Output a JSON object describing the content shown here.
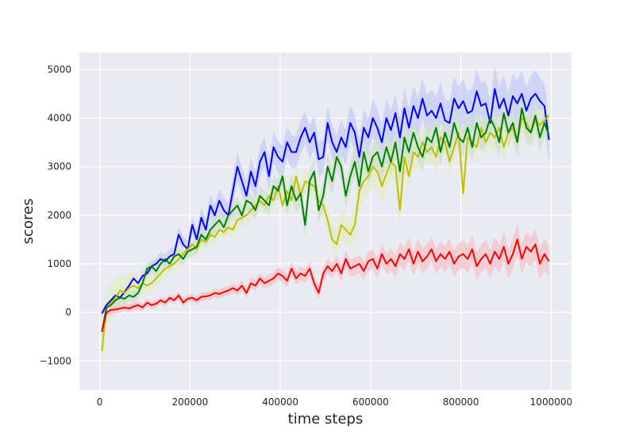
{
  "chart_data": {
    "type": "line",
    "xlabel": "time steps",
    "ylabel": "scores",
    "xlim": [
      -45000,
      1045000
    ],
    "ylim": [
      -1600,
      5350
    ],
    "xticks": [
      0,
      200000,
      400000,
      600000,
      800000,
      1000000
    ],
    "xtick_labels": [
      "0",
      "200000",
      "400000",
      "600000",
      "800000",
      "1000000"
    ],
    "yticks": [
      -1000,
      0,
      1000,
      2000,
      3000,
      4000,
      5000
    ],
    "ytick_labels": [
      "−1000",
      "0",
      "1000",
      "2000",
      "3000",
      "4000",
      "5000"
    ],
    "grid": true,
    "shaded_band": "variance band around each series",
    "series": [
      {
        "color": "#0000ff",
        "band_color": "#c8cdf5",
        "band_width": [
          50,
          100,
          180,
          280,
          330,
          350,
          380,
          420,
          450,
          470,
          480
        ],
        "x": [
          5000,
          15000,
          25000,
          35000,
          45000,
          55000,
          65000,
          75000,
          85000,
          95000,
          105000,
          115000,
          125000,
          135000,
          145000,
          155000,
          165000,
          175000,
          185000,
          195000,
          205000,
          215000,
          225000,
          235000,
          245000,
          255000,
          265000,
          275000,
          285000,
          295000,
          305000,
          315000,
          325000,
          335000,
          345000,
          355000,
          365000,
          375000,
          385000,
          395000,
          405000,
          415000,
          425000,
          435000,
          445000,
          455000,
          465000,
          475000,
          485000,
          495000,
          505000,
          515000,
          525000,
          535000,
          545000,
          555000,
          565000,
          575000,
          585000,
          595000,
          605000,
          615000,
          625000,
          635000,
          645000,
          655000,
          665000,
          675000,
          685000,
          695000,
          705000,
          715000,
          725000,
          735000,
          745000,
          755000,
          765000,
          775000,
          785000,
          795000,
          805000,
          815000,
          825000,
          835000,
          845000,
          855000,
          865000,
          875000,
          885000,
          895000,
          905000,
          915000,
          925000,
          935000,
          945000,
          955000,
          965000,
          975000,
          985000,
          995000
        ],
        "values": [
          -20,
          150,
          250,
          350,
          300,
          420,
          550,
          700,
          600,
          750,
          800,
          950,
          1000,
          1100,
          1050,
          1150,
          1200,
          1600,
          1400,
          1300,
          1800,
          1500,
          1950,
          1700,
          2200,
          2000,
          2300,
          2100,
          2000,
          2500,
          3000,
          2700,
          2400,
          2900,
          2600,
          3100,
          3300,
          2800,
          3400,
          3200,
          3100,
          3500,
          3300,
          3300,
          3600,
          3800,
          3500,
          3700,
          3150,
          3200,
          3900,
          3500,
          3300,
          3600,
          3400,
          3900,
          3700,
          3200,
          3800,
          3600,
          4000,
          3800,
          3500,
          4000,
          3750,
          4100,
          3600,
          4200,
          3800,
          4250,
          4000,
          4400,
          4050,
          4150,
          4000,
          4300,
          3950,
          3900,
          4400,
          4200,
          4350,
          4100,
          4150,
          4550,
          4250,
          4300,
          3900,
          4600,
          4200,
          4400,
          4050,
          4450,
          4300,
          4500,
          4150,
          4400,
          4500,
          4350,
          4250,
          3550
        ]
      },
      {
        "color": "#bfbf00",
        "band_color": "#e4ecc9",
        "band_width": [
          450,
          200,
          150,
          180,
          220,
          250,
          400,
          300,
          300,
          300,
          280
        ],
        "x": [
          5000,
          15000,
          25000,
          35000,
          45000,
          55000,
          65000,
          75000,
          85000,
          95000,
          105000,
          115000,
          125000,
          135000,
          145000,
          155000,
          165000,
          175000,
          185000,
          195000,
          205000,
          215000,
          225000,
          235000,
          245000,
          255000,
          265000,
          275000,
          285000,
          295000,
          305000,
          315000,
          325000,
          335000,
          345000,
          355000,
          365000,
          375000,
          385000,
          395000,
          405000,
          415000,
          425000,
          435000,
          445000,
          455000,
          465000,
          475000,
          485000,
          495000,
          505000,
          515000,
          525000,
          535000,
          545000,
          555000,
          565000,
          575000,
          585000,
          595000,
          605000,
          615000,
          625000,
          635000,
          645000,
          655000,
          665000,
          675000,
          685000,
          695000,
          705000,
          715000,
          725000,
          735000,
          745000,
          755000,
          765000,
          775000,
          785000,
          795000,
          805000,
          815000,
          825000,
          835000,
          845000,
          855000,
          865000,
          875000,
          885000,
          895000,
          905000,
          915000,
          925000,
          935000,
          945000,
          955000,
          965000,
          975000,
          985000,
          995000
        ],
        "values": [
          -800,
          100,
          200,
          300,
          450,
          400,
          500,
          550,
          500,
          600,
          550,
          600,
          700,
          800,
          900,
          950,
          1000,
          1100,
          1200,
          1300,
          1400,
          1300,
          1500,
          1450,
          1600,
          1550,
          1700,
          1650,
          1750,
          1700,
          1900,
          1950,
          2000,
          2100,
          2200,
          2300,
          2200,
          2400,
          2300,
          2600,
          2200,
          2500,
          2300,
          2800,
          2400,
          2700,
          2650,
          2600,
          2300,
          2200,
          1900,
          1500,
          1400,
          1800,
          1700,
          1600,
          1800,
          2500,
          2700,
          2800,
          3000,
          2900,
          2600,
          2850,
          3100,
          3000,
          2100,
          3200,
          2800,
          3300,
          3200,
          3500,
          3300,
          3400,
          3200,
          3600,
          3500,
          3100,
          3400,
          3700,
          2450,
          3600,
          3500,
          3400,
          3800,
          3500,
          3700,
          3600,
          3800,
          3400,
          3700,
          3800,
          3500,
          4000,
          3900,
          3700,
          3950,
          3850,
          3950,
          4050
        ]
      },
      {
        "color": "#008000",
        "band_color": "#cfe1d0",
        "band_width": [
          120,
          120,
          150,
          180,
          220,
          280,
          300,
          300,
          300,
          300,
          280
        ],
        "x": [
          5000,
          15000,
          25000,
          35000,
          45000,
          55000,
          65000,
          75000,
          85000,
          95000,
          105000,
          115000,
          125000,
          135000,
          145000,
          155000,
          165000,
          175000,
          185000,
          195000,
          205000,
          215000,
          225000,
          235000,
          245000,
          255000,
          265000,
          275000,
          285000,
          295000,
          305000,
          315000,
          325000,
          335000,
          345000,
          355000,
          365000,
          375000,
          385000,
          395000,
          405000,
          415000,
          425000,
          435000,
          445000,
          455000,
          465000,
          475000,
          485000,
          495000,
          505000,
          515000,
          525000,
          535000,
          545000,
          555000,
          565000,
          575000,
          585000,
          595000,
          605000,
          615000,
          625000,
          635000,
          645000,
          655000,
          665000,
          675000,
          685000,
          695000,
          705000,
          715000,
          725000,
          735000,
          745000,
          755000,
          765000,
          775000,
          785000,
          795000,
          805000,
          815000,
          825000,
          835000,
          845000,
          855000,
          865000,
          875000,
          885000,
          895000,
          905000,
          915000,
          925000,
          935000,
          945000,
          955000,
          965000,
          975000,
          985000,
          995000
        ],
        "values": [
          -400,
          100,
          150,
          250,
          300,
          280,
          350,
          320,
          400,
          600,
          900,
          950,
          850,
          1000,
          1100,
          1000,
          1150,
          1200,
          1100,
          1250,
          1300,
          1350,
          1600,
          1500,
          1700,
          1800,
          1900,
          1750,
          2000,
          2100,
          2200,
          2000,
          2300,
          2250,
          2100,
          2400,
          2300,
          2200,
          2600,
          2500,
          2800,
          2200,
          2600,
          2300,
          2450,
          1800,
          2700,
          2900,
          2100,
          2400,
          3000,
          2700,
          3200,
          3000,
          2400,
          2800,
          3100,
          2600,
          3300,
          2900,
          3200,
          3300,
          3000,
          3400,
          3100,
          3500,
          2900,
          3600,
          3300,
          3700,
          3400,
          3200,
          3600,
          3500,
          3800,
          3300,
          3700,
          3400,
          3900,
          3600,
          3500,
          3800,
          3400,
          3900,
          3600,
          3700,
          4000,
          3800,
          3500,
          4100,
          3700,
          3900,
          3500,
          4200,
          3800,
          3700,
          4050,
          3600,
          3900,
          3650
        ]
      },
      {
        "color": "#ff0000",
        "band_color": "#f2c6cc",
        "band_width": [
          80,
          80,
          80,
          100,
          130,
          150,
          200,
          250,
          280,
          300,
          320
        ],
        "x": [
          5000,
          15000,
          25000,
          35000,
          45000,
          55000,
          65000,
          75000,
          85000,
          95000,
          105000,
          115000,
          125000,
          135000,
          145000,
          155000,
          165000,
          175000,
          185000,
          195000,
          205000,
          215000,
          225000,
          235000,
          245000,
          255000,
          265000,
          275000,
          285000,
          295000,
          305000,
          315000,
          325000,
          335000,
          345000,
          355000,
          365000,
          375000,
          385000,
          395000,
          405000,
          415000,
          425000,
          435000,
          445000,
          455000,
          465000,
          475000,
          485000,
          495000,
          505000,
          515000,
          525000,
          535000,
          545000,
          555000,
          565000,
          575000,
          585000,
          595000,
          605000,
          615000,
          625000,
          635000,
          645000,
          655000,
          665000,
          675000,
          685000,
          695000,
          705000,
          715000,
          725000,
          735000,
          745000,
          755000,
          765000,
          775000,
          785000,
          795000,
          805000,
          815000,
          825000,
          835000,
          845000,
          855000,
          865000,
          875000,
          885000,
          895000,
          905000,
          915000,
          925000,
          935000,
          945000,
          955000,
          965000,
          975000,
          985000,
          995000
        ],
        "values": [
          -400,
          0,
          50,
          60,
          80,
          100,
          80,
          120,
          150,
          100,
          200,
          150,
          180,
          250,
          200,
          300,
          250,
          350,
          200,
          280,
          300,
          250,
          320,
          330,
          350,
          400,
          380,
          420,
          450,
          500,
          450,
          550,
          400,
          600,
          550,
          700,
          600,
          650,
          700,
          800,
          750,
          650,
          900,
          700,
          800,
          750,
          900,
          600,
          400,
          800,
          950,
          850,
          1000,
          800,
          1100,
          900,
          950,
          1000,
          850,
          1050,
          1100,
          900,
          1200,
          1000,
          1100,
          950,
          1200,
          1100,
          1300,
          1000,
          1250,
          1050,
          1150,
          1300,
          1050,
          1200,
          1100,
          1250,
          1000,
          1150,
          1200,
          1100,
          1300,
          950,
          1100,
          1200,
          1000,
          1250,
          1100,
          1350,
          1000,
          1200,
          1500,
          1100,
          1350,
          1250,
          1400,
          1000,
          1200,
          1050
        ]
      }
    ]
  }
}
